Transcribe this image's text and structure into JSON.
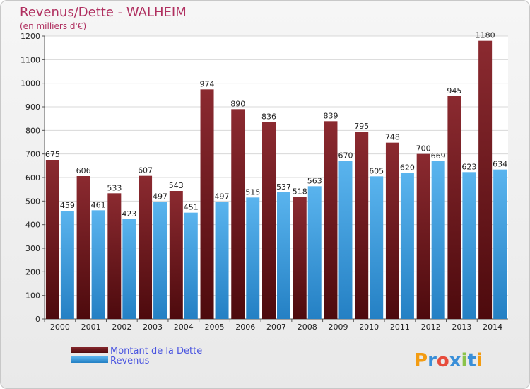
{
  "chart_data": {
    "type": "bar",
    "title": "Revenus/Dette - WALHEIM",
    "subtitle": "(en milliers d'€)",
    "categories": [
      "2000",
      "2001",
      "2002",
      "2003",
      "2004",
      "2005",
      "2006",
      "2007",
      "2008",
      "2009",
      "2010",
      "2011",
      "2012",
      "2013",
      "2014"
    ],
    "series": [
      {
        "name": "Montant de la Dette",
        "color": "#7a1f24",
        "values": [
          675,
          606,
          533,
          607,
          543,
          974,
          890,
          836,
          518,
          839,
          795,
          748,
          700,
          945,
          1180
        ]
      },
      {
        "name": "Revenus",
        "color": "#3d9fe0",
        "values": [
          459,
          461,
          423,
          497,
          451,
          497,
          515,
          537,
          563,
          670,
          605,
          620,
          669,
          623,
          634
        ]
      }
    ],
    "ylim": [
      0,
      1200
    ],
    "yticks": [
      0,
      100,
      200,
      300,
      400,
      500,
      600,
      700,
      800,
      900,
      1000,
      1100,
      1200
    ],
    "grid": true,
    "legend_position": "bottom-left",
    "watermark": "Proxiti"
  }
}
